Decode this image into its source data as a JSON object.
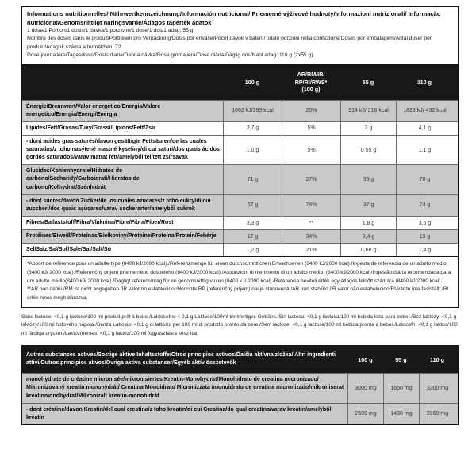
{
  "colors": {
    "header_bg": "#181818",
    "header_text": "#ffffff",
    "row_grey": "#c9c9c9",
    "row_white": "#ffffff",
    "border": "#111111"
  },
  "info_box": {
    "title": "Informations nutritionnelles/ Nährwertkennzeichnung/Información nutricional/ Priemerné výživové hodnoty/Informazioni nutrizionali/ Informação nutricional/Genomsnittligt näringsvärde/Átlagos tápérték adatok",
    "lines": [
      "1 dose/1 Portion/1 dosis/1 dávka/1 porzione/1 dose/1 dos/1 adag: 55 g",
      "Nombre des doses dans le produit/Portionen pro Verpackung/Dosis por envase/Počet dávok v balení/Totale porzioni nella confezione/Doses por embalagem/Antal doser per produkt/Adagok száma a termékben: 72",
      "Dose journalière/Tagesdosis/Dosis diaria/Denná dávka/Dose giornaliera/Dose diária/Daglig dos/Napi adag: 110 g (2x55 g)"
    ]
  },
  "nutrition_table": {
    "columns": [
      "100 g",
      "AR/RM/IR/\nRP/RI/RWS*\n(100 g)",
      "55 g",
      "110 g"
    ],
    "rows": [
      {
        "label": "Énergie/Brennwert/Valor energético/Energia/Valore energetico/Energia/Energi/Energia",
        "values": [
          "1662 kJ/393 kcal",
          "20%",
          "914 kJ/ 216 kcal",
          "1828 kJ/ 432 kcal"
        ]
      },
      {
        "label": "Lipides/Fett/Grasas/Tuky/Grassi/Lípidos/Fett/Zsír",
        "values": [
          "3,7 g",
          "5%",
          "2 g",
          "4,1 g"
        ]
      },
      {
        "label": "- dont acides gras saturés/davon gesättigte Fettsäuren/de las cuales saturadas/z toho nasýtené mastné kyseliny/di cui saturi/dos quais ácidos gordos saturados/varav mättat fett/amelyből telített zsírsavak",
        "values": [
          "1,0 g",
          "5%",
          "0,55 g",
          "1,1 g"
        ]
      },
      {
        "label": "Glucides/Kohlenhydrate/Hidratos de carbono/Sacharidy/Carboidrati/Hidratos de carbono/Kolhydrat/Szénhidrát",
        "values": [
          "71 g",
          "27%",
          "39 g",
          "78 g"
        ]
      },
      {
        "label": "- dont sucres/davon Zucker/de los cuales azúcares/z toho cukry/di cui zuccheri/dos quais açúcares/varav sockerarter/amelyből cukrok",
        "values": [
          "67 g",
          "74%",
          "37 g",
          "74 g"
        ]
      },
      {
        "label": "Fibres/Ballaststoff/Fibra/Vláknina/Fibre/Fibra/Fiber/Rost",
        "values": [
          "3,3 g",
          "**",
          "1,8 g",
          "3,6 g"
        ]
      },
      {
        "label": "Protéines/Eiweiß/Proteínas/Bielkoviny/Proteine/Proteína/Protein/Fehérje",
        "values": [
          "17 g",
          "34%",
          "9,4 g",
          "19 g"
        ]
      },
      {
        "label": "Sel/Salz/Sal/Soľ/Sale/Sal/Salt/Só",
        "values": [
          "1,2 g",
          "21%",
          "0,68 g",
          "1,4 g"
        ]
      }
    ],
    "footnotes": [
      "*Apport de référence pour un adulte-type (8400 kJ/2000 kcal)./Referenzmenge für einen durchschnittlichen Erwachsenen (8400 kJ/2000 kcal)./Ingesta de referencia de un adulto medio (8400 kJ/ 2000 kcal)./Referenčný príjem priemerného dospelého (8400 kJ/2000 kcal)./Assunzioni di riferimento di un adulto medio. (8400 kJ/2000 kcal)/Ingestão diária recomendada para um adulto médio(8400 kJ/ 2000 kcal)./Dagligt referensintag för en genomsnittlig vuxen (8400 kJ/ 2000 kcal)./Referencia beviteli érték egy átlagos felnőtt számára (8400 kJ/2000 kcal).",
      "**AR non défini./RM ist nicht angegeben./IR valor no establecido./Hodnota RP (referenčný príjem) nie je stanovená./AR non stabilito./IR valor não estabelecido/RI-värde inte fastställt./RI érték nincs meghatározva."
    ]
  },
  "lactose_note": "Sans lactose: <0,1 g lactose/100 ml produit prêt à boire./Laktosefrei < 0,1 g Laktose/100ml trinkfertiges Getränk./Sin lactosa: <0,1 g lactosa/100 ml bebida lista para beber./Bez laktózy: <0,1 g laktózy/100 ml hotového nápoja./Senza Lattosio: <0,1 g di lattosio per 100 ml di prodotto pronto da bere./Sem lactose: <0,1 g lactose/100 ml bebida pronta a beber./Laktosfri: <0,1 g laktos/100 ml färdiga drycker./Laktózmentes: <0,1 g laktóz/100 ml fogyasztásra kész ital.",
  "actives_table": {
    "header_label": "Autres substances actives/Sostige aktive Inhaltsstoffe/Otros principios activos/Ďalšia aktívna zložka/ Altri ingredienti attivi/Outros princípios ativos/Övriga aktiva substanser/Egyéb aktív összetevők",
    "columns": [
      "100 g",
      "55 g",
      "110 g"
    ],
    "rows": [
      {
        "label": "monohydrate de créatine micronisée/mikronisiertes Kreatin-Monohydrat/Monohidrato de creatina micronizado/ Mikronizovaný kreatín monohydrát/ Creatina Monoidrato Micronizzata /monoidrato de creatina micronizado/mikroniserat kreatinmonohydrat/Mikronizált kreatin-monohidrát",
        "values": [
          "3000 mg",
          "1650 mg",
          "3300 mg"
        ]
      },
      {
        "label": "- dont créatine/davon Kreatin/del cual creatina/z toho kreatín/di cui Creatina/do qual creatina/varav kreatin/amelyből kreatin",
        "values": [
          "2600 mg",
          "1430 mg",
          "2860 mg"
        ]
      }
    ]
  }
}
